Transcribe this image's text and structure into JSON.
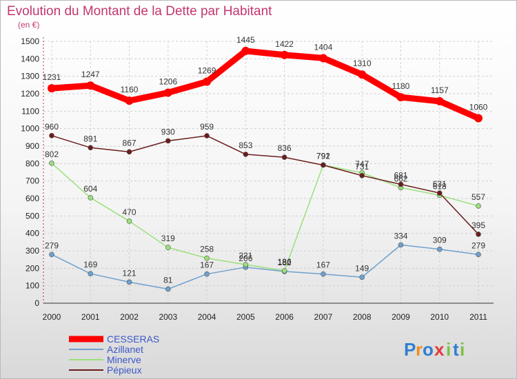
{
  "chart_data": {
    "type": "line",
    "title": "Evolution du Montant de la Dette par Habitant",
    "subtitle": "(en €)",
    "xlabel": "",
    "ylabel": "",
    "x": [
      "2000",
      "2001",
      "2002",
      "2003",
      "2004",
      "2005",
      "2006",
      "2007",
      "2008",
      "2009",
      "2010",
      "2011"
    ],
    "ylim": [
      0,
      1500
    ],
    "yticks": [
      0,
      100,
      200,
      300,
      400,
      500,
      600,
      700,
      800,
      900,
      1000,
      1100,
      1200,
      1300,
      1400,
      1500
    ],
    "grid": true,
    "legend_position": "bottom-left",
    "series": [
      {
        "name": "CESSERAS",
        "color": "#ff0000",
        "values": [
          1231,
          1247,
          1160,
          1206,
          1269,
          1445,
          1422,
          1404,
          1310,
          1180,
          1157,
          1060
        ]
      },
      {
        "name": "Azillanet",
        "color": "#6ea0cd",
        "values": [
          279,
          169,
          121,
          81,
          167,
          206,
          182,
          167,
          149,
          334,
          309,
          279
        ]
      },
      {
        "name": "Minerve",
        "color": "#99e07a",
        "values": [
          802,
          604,
          470,
          319,
          258,
          221,
          186,
          792,
          747,
          662,
          618,
          557
        ]
      },
      {
        "name": "Pépieux",
        "color": "#6b1c1c",
        "values": [
          960,
          891,
          867,
          930,
          959,
          853,
          836,
          791,
          731,
          681,
          631,
          395
        ]
      }
    ]
  },
  "logo": {
    "text": "Proxiti",
    "letters": [
      "P",
      "r",
      "o",
      "x",
      "i",
      "t",
      "i"
    ],
    "colors": [
      "#2f7fd1",
      "#f28c1b",
      "#2f7fd1",
      "#e23b3b",
      "#7ac143",
      "#2f7fd1",
      "#7ac143"
    ]
  }
}
